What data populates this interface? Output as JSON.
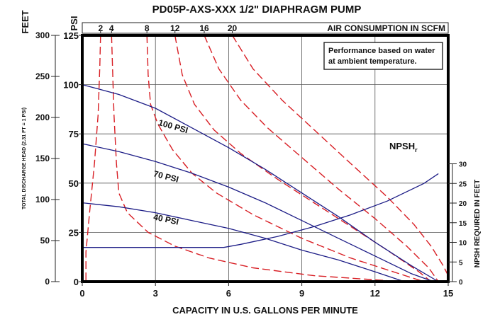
{
  "chart_data": {
    "type": "line",
    "title": "PD05P-AXS-XXX   1/2\" DIAPHRAGM PUMP",
    "xlabel": "CAPACITY IN U.S. GALLONS PER MINUTE",
    "x_ticks": [
      "0",
      "3",
      "6",
      "9",
      "12",
      "15"
    ],
    "xlim": [
      0,
      15
    ],
    "ylabel_psi": "PSI",
    "y_psi_ticks": [
      "0",
      "25",
      "50",
      "75",
      "100",
      "125"
    ],
    "ylim_psi": [
      0,
      125
    ],
    "ylabel_feet": "FEET",
    "y_feet_ticks": [
      "0",
      "50",
      "100",
      "150",
      "200",
      "250",
      "300"
    ],
    "ylim_feet": [
      0,
      300
    ],
    "left_axis_note": "TOTAL DISCHARGE HEAD (2.31 FT = 1 PSI)",
    "right_axis_label": "NPSH REQUIRED IN FEET",
    "right_axis_ticks": [
      "0",
      "5",
      "10",
      "15",
      "20",
      "25",
      "30"
    ],
    "ylim_npsh": [
      0,
      30
    ],
    "top_axis_label": "AIR CONSUMPTION IN SCFM",
    "top_axis_ticks": [
      {
        "label": "2",
        "x": 0.75
      },
      {
        "label": "4",
        "x": 1.2
      },
      {
        "label": "8",
        "x": 2.65
      },
      {
        "label": "12",
        "x": 3.8
      },
      {
        "label": "16",
        "x": 5.0
      },
      {
        "label": "20",
        "x": 6.15
      }
    ],
    "note_lines": [
      "Performance based on water",
      "at ambient temperature."
    ],
    "series": [
      {
        "name": "100 PSI",
        "color": "#1c1c86",
        "points": [
          [
            0,
            100
          ],
          [
            1.5,
            95
          ],
          [
            3,
            88
          ],
          [
            4.5,
            78
          ],
          [
            6,
            68
          ],
          [
            7.5,
            57
          ],
          [
            9,
            45
          ],
          [
            10.5,
            33
          ],
          [
            12,
            20
          ],
          [
            13.5,
            8
          ],
          [
            14.6,
            0
          ]
        ],
        "label_at": [
          3.1,
          79.5
        ],
        "label_angle": 16
      },
      {
        "name": "70 PSI",
        "color": "#1c1c86",
        "points": [
          [
            0,
            70
          ],
          [
            1.5,
            66
          ],
          [
            3,
            61
          ],
          [
            4.5,
            55
          ],
          [
            6,
            48
          ],
          [
            7.5,
            40
          ],
          [
            9,
            31
          ],
          [
            10.5,
            22
          ],
          [
            12,
            13
          ],
          [
            13.5,
            4
          ],
          [
            14.4,
            0
          ]
        ],
        "label_at": [
          2.9,
          53.5
        ],
        "label_angle": 14
      },
      {
        "name": "40 PSI",
        "color": "#1c1c86",
        "points": [
          [
            0,
            40
          ],
          [
            1.5,
            38
          ],
          [
            3,
            35
          ],
          [
            4.5,
            31
          ],
          [
            6,
            27
          ],
          [
            7.5,
            22
          ],
          [
            9,
            16
          ],
          [
            10.5,
            11
          ],
          [
            12,
            5
          ],
          [
            13.2,
            0
          ]
        ],
        "label_at": [
          2.9,
          31.5
        ],
        "label_angle": 12
      }
    ],
    "npsh_curve": {
      "name": "NPSHr",
      "label_main": "NPSH",
      "label_sub": "r",
      "color": "#1c1c86",
      "points": [
        [
          0,
          8.7
        ],
        [
          5.8,
          8.7
        ],
        [
          6.5,
          9.5
        ],
        [
          8,
          11.5
        ],
        [
          9.5,
          14
        ],
        [
          11,
          17
        ],
        [
          12.5,
          20.5
        ],
        [
          14,
          25
        ],
        [
          14.6,
          27.5
        ]
      ]
    },
    "air_curves": [
      {
        "scfm": "2",
        "color": "#d81e24",
        "points": [
          [
            0.75,
            125
          ],
          [
            0.72,
            110
          ],
          [
            0.65,
            85
          ],
          [
            0.5,
            60
          ],
          [
            0.3,
            35
          ],
          [
            0.15,
            15
          ],
          [
            0.15,
            0
          ]
        ]
      },
      {
        "scfm": "4",
        "color": "#d81e24",
        "points": [
          [
            1.2,
            125
          ],
          [
            1.25,
            105
          ],
          [
            1.3,
            85
          ],
          [
            1.4,
            60
          ],
          [
            1.5,
            45
          ],
          [
            1.85,
            35
          ],
          [
            2.7,
            25
          ],
          [
            3.8,
            18
          ],
          [
            5.2,
            12
          ],
          [
            7,
            7
          ],
          [
            9.5,
            3
          ],
          [
            12.5,
            0.5
          ],
          [
            13.5,
            0
          ]
        ]
      },
      {
        "scfm": "8",
        "color": "#d81e24",
        "points": [
          [
            2.65,
            125
          ],
          [
            2.7,
            105
          ],
          [
            2.8,
            90
          ],
          [
            3.1,
            80
          ],
          [
            3.7,
            67
          ],
          [
            4.5,
            55
          ],
          [
            5.5,
            45
          ],
          [
            7,
            34
          ],
          [
            9,
            22
          ],
          [
            11,
            12
          ],
          [
            13,
            4
          ],
          [
            14,
            0
          ]
        ]
      },
      {
        "scfm": "12",
        "color": "#d81e24",
        "points": [
          [
            3.8,
            125
          ],
          [
            4.1,
            105
          ],
          [
            4.6,
            90
          ],
          [
            5.4,
            77
          ],
          [
            6.5,
            65
          ],
          [
            8,
            52
          ],
          [
            9.5,
            40
          ],
          [
            11,
            28
          ],
          [
            12.5,
            16
          ],
          [
            13.8,
            5
          ],
          [
            14.3,
            0
          ]
        ]
      },
      {
        "scfm": "16",
        "color": "#d81e24",
        "points": [
          [
            5.0,
            125
          ],
          [
            5.6,
            108
          ],
          [
            6.5,
            92
          ],
          [
            7.6,
            78
          ],
          [
            9,
            63
          ],
          [
            10.5,
            47
          ],
          [
            12,
            32
          ],
          [
            13.3,
            18
          ],
          [
            14.2,
            7
          ],
          [
            14.6,
            0
          ]
        ]
      },
      {
        "scfm": "20",
        "color": "#d81e24",
        "points": [
          [
            6.15,
            125
          ],
          [
            7,
            108
          ],
          [
            8.2,
            92
          ],
          [
            9.6,
            76
          ],
          [
            11,
            60
          ],
          [
            12.5,
            43
          ],
          [
            13.6,
            29
          ],
          [
            14.3,
            18
          ],
          [
            14.8,
            8
          ],
          [
            15,
            3
          ]
        ]
      }
    ],
    "grid": true
  }
}
